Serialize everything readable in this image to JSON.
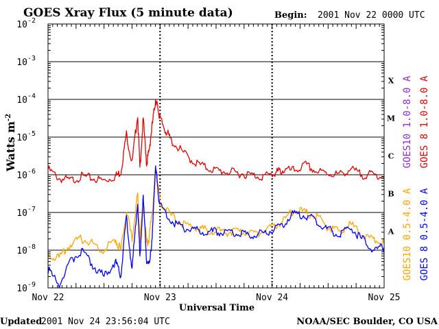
{
  "header": {
    "title": "GOES Xray Flux (5 minute data)",
    "begin_label": "Begin:",
    "begin_value": "2001 Nov 22 0000 UTC"
  },
  "footer": {
    "updated_label": "Updated",
    "updated_value": "2001 Nov 24 23:56:04 UTC",
    "credit": "NOAA/SEC Boulder, CO USA"
  },
  "colors": {
    "goes10_long": "#8a2be2",
    "goes8_long": "#e00000",
    "goes10_short": "#ffa500",
    "goes8_short": "#0000ff",
    "grid": "#000000"
  },
  "chart_data": {
    "type": "line",
    "title": "GOES Xray Flux (5 minute data)",
    "xlabel": "Universal Time",
    "ylabel": "Watts m",
    "ylabel_sup": "-2",
    "y_scale": "log",
    "ylim": [
      1e-09,
      0.01
    ],
    "xlim_days": [
      0,
      3
    ],
    "x_ticks": [
      {
        "day": 0,
        "label": "Nov 22"
      },
      {
        "day": 1,
        "label": "Nov 23"
      },
      {
        "day": 2,
        "label": "Nov 24"
      },
      {
        "day": 3,
        "label": "Nov 25"
      }
    ],
    "y_ticks": [
      {
        "exp": -9,
        "label": "10",
        "sup": "-9"
      },
      {
        "exp": -8,
        "label": "10",
        "sup": "-8"
      },
      {
        "exp": -7,
        "label": "10",
        "sup": "-7"
      },
      {
        "exp": -6,
        "label": "10",
        "sup": "-6"
      },
      {
        "exp": -5,
        "label": "10",
        "sup": "-5"
      },
      {
        "exp": -4,
        "label": "10",
        "sup": "-4"
      },
      {
        "exp": -3,
        "label": "10",
        "sup": "-3"
      },
      {
        "exp": -2,
        "label": "10",
        "sup": "-2"
      }
    ],
    "flare_classes": [
      {
        "label": "X",
        "exp": -3.5
      },
      {
        "label": "M",
        "exp": -4.5
      },
      {
        "label": "C",
        "exp": -5.5
      },
      {
        "label": "B",
        "exp": -6.5
      },
      {
        "label": "A",
        "exp": -7.5
      }
    ],
    "grid": true,
    "legend_right": [
      {
        "name": "GOES10 1.0-8.0 A",
        "color": "#8a2be2"
      },
      {
        "name": "GOES 8 1.0-8.0 A",
        "color": "#e00000"
      },
      {
        "name": "GOES10 0.5-4.0 A",
        "color": "#ffa500"
      },
      {
        "name": "GOES 8 0.5-4.0 A",
        "color": "#0000ff"
      }
    ],
    "series": [
      {
        "name": "GOES 8 1.0-8.0 A",
        "color": "#e00000",
        "x": [
          0.0,
          0.1,
          0.2,
          0.3,
          0.4,
          0.5,
          0.6,
          0.65,
          0.7,
          0.75,
          0.8,
          0.82,
          0.85,
          0.88,
          0.9,
          0.93,
          0.96,
          0.98,
          1.0,
          1.05,
          1.1,
          1.2,
          1.3,
          1.4,
          1.5,
          1.6,
          1.7,
          1.8,
          1.9,
          2.0,
          2.05,
          2.1,
          2.2,
          2.3,
          2.4,
          2.5,
          2.6,
          2.7,
          2.8,
          2.9,
          3.0
        ],
        "y": [
          1.4e-06,
          8e-07,
          7e-07,
          9e-07,
          8e-07,
          7e-07,
          9e-07,
          1.2e-06,
          1.2e-05,
          2e-06,
          4e-05,
          1.5e-06,
          3e-05,
          2e-06,
          4e-06,
          2e-05,
          0.0001,
          6e-05,
          3e-05,
          1.5e-05,
          8e-06,
          4e-06,
          2.2e-06,
          1.6e-06,
          1.3e-06,
          1.2e-06,
          1.1e-06,
          1e-06,
          9e-07,
          1e-06,
          1.2e-06,
          1.3e-06,
          1.3e-06,
          1.8e-06,
          1.2e-06,
          1.1e-06,
          1e-06,
          1.4e-06,
          1e-06,
          1e-06,
          9e-07
        ]
      },
      {
        "name": "GOES10 0.5-4.0 A",
        "color": "#ffa500",
        "x": [
          0.0,
          0.1,
          0.2,
          0.3,
          0.4,
          0.5,
          0.6,
          0.65,
          0.7,
          0.75,
          0.8,
          0.82,
          0.85,
          0.88,
          0.9,
          0.93,
          0.96,
          0.98,
          1.0,
          1.1,
          1.2,
          1.3,
          1.4,
          1.5,
          1.6,
          1.7,
          1.8,
          1.9,
          2.0,
          2.1,
          2.2,
          2.3,
          2.4,
          2.5,
          2.6,
          2.7,
          2.8,
          2.9,
          3.0
        ],
        "y": [
          8e-09,
          6e-09,
          1.4e-08,
          2e-08,
          1.5e-08,
          1e-08,
          2e-08,
          1e-08,
          1e-07,
          2e-08,
          3e-07,
          2e-08,
          2e-07,
          1.5e-08,
          2e-08,
          1e-07,
          1.5e-06,
          5e-07,
          2e-07,
          8e-08,
          5e-08,
          4e-08,
          3.5e-08,
          3.2e-08,
          3e-08,
          3e-08,
          2.8e-08,
          3e-08,
          4e-08,
          6e-08,
          1.2e-07,
          1e-07,
          8e-08,
          4e-08,
          3e-08,
          5e-08,
          2.5e-08,
          2e-08,
          1.5e-08
        ]
      },
      {
        "name": "GOES 8 0.5-4.0 A",
        "color": "#0000ff",
        "x": [
          0.0,
          0.1,
          0.2,
          0.3,
          0.4,
          0.5,
          0.6,
          0.65,
          0.7,
          0.75,
          0.8,
          0.82,
          0.85,
          0.88,
          0.9,
          0.93,
          0.96,
          0.98,
          1.0,
          1.1,
          1.2,
          1.3,
          1.4,
          1.5,
          1.6,
          1.7,
          1.8,
          1.9,
          2.0,
          2.1,
          2.2,
          2.3,
          2.4,
          2.5,
          2.6,
          2.7,
          2.8,
          2.9,
          3.0
        ],
        "y": [
          3e-09,
          1.2e-09,
          5e-09,
          1e-08,
          4e-09,
          2e-09,
          5e-09,
          2e-09,
          8e-08,
          3e-09,
          2e-07,
          6e-09,
          2.5e-07,
          5e-09,
          4e-09,
          2e-08,
          1.8e-06,
          4e-07,
          1.5e-07,
          6e-08,
          4e-08,
          3.5e-08,
          3.2e-08,
          3e-08,
          2.8e-08,
          2.8e-08,
          2.6e-08,
          2.7e-08,
          3.5e-08,
          5e-08,
          1e-07,
          8e-08,
          6e-08,
          3.5e-08,
          2.5e-08,
          4e-08,
          2e-08,
          1e-08,
          1.2e-08
        ]
      }
    ]
  }
}
